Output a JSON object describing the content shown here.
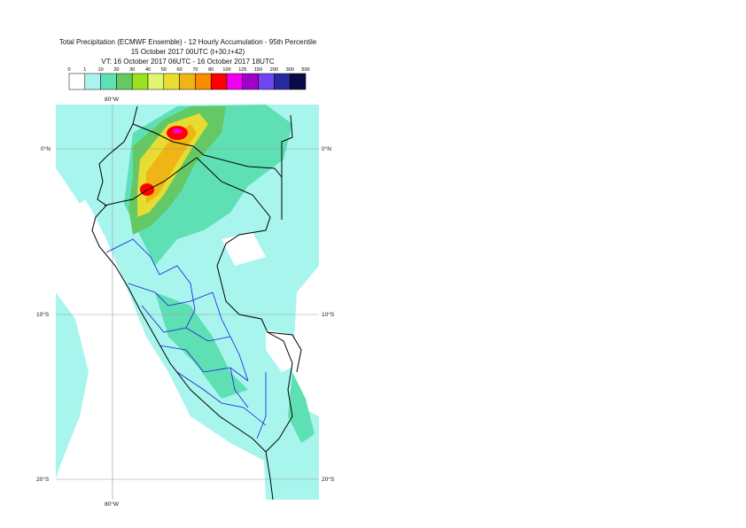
{
  "title": {
    "line1": "Total Precipitation (ECMWF Ensemble) - 12 Hourly Accumulation - 95th Percentile",
    "line2": "15 October 2017 00UTC (t+30,t+42)",
    "line3": "VT: 16 October 2017 06UTC - 16 October 2017 18UTC"
  },
  "legend": {
    "ticks": [
      "0",
      "1",
      "10",
      "20",
      "30",
      "40",
      "50",
      "60",
      "70",
      "80",
      "100",
      "125",
      "150",
      "200",
      "300",
      "500"
    ],
    "colors": [
      "#ffffff",
      "#a8f5ee",
      "#5fe0b4",
      "#64c864",
      "#9be11e",
      "#e1f56e",
      "#e6dc32",
      "#f0b414",
      "#fa8c00",
      "#ff0000",
      "#f000f0",
      "#a000c8",
      "#6e46f0",
      "#2828a0",
      "#0a0a46"
    ]
  },
  "map": {
    "labels": {
      "lon_top": "80°W",
      "lon_bottom": "80°W",
      "lat_0_left": "0°N",
      "lat_0_right": "0°N",
      "lat_10_left": "10°S",
      "lat_10_right": "10°S",
      "lat_20_left": "20°S",
      "lat_20_right": "20°S"
    },
    "colors": {
      "light": "#a8f5ee",
      "medium": "#5fe0b4",
      "green": "#64c864",
      "yellow": "#e6dc32",
      "orange": "#f0b414",
      "red": "#ff0000",
      "magenta": "#f000f0",
      "border_country": "#000000",
      "border_region": "#1a1adc",
      "grid": "#888888"
    }
  }
}
